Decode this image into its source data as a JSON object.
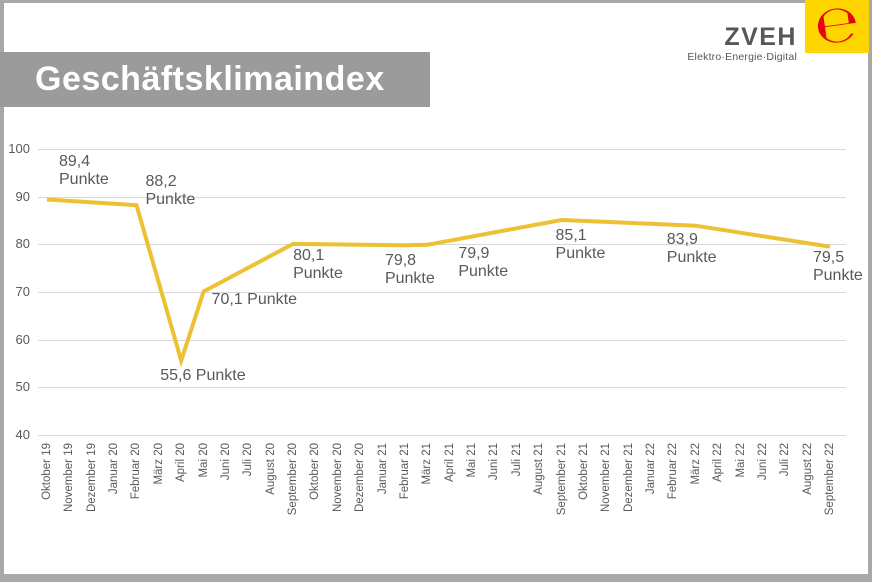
{
  "header": {
    "title": "Geschäftsklimaindex"
  },
  "logo": {
    "brand": "ZVEH",
    "tagline": "Elektro·Energie·Digital",
    "mark_glyph": "℮",
    "square_color": "#ffd500",
    "mark_color": "#e30613",
    "text_color": "#575756"
  },
  "frame": {
    "border_color": "#a8a8a8",
    "banner_color": "#9b9b9b"
  },
  "chart_data": {
    "type": "line",
    "title": "Geschäftsklimaindex",
    "unit": "Punkte",
    "line_color": "#edc133",
    "grid_color": "#d9d9d9",
    "text_color": "#595959",
    "grid": true,
    "legend": false,
    "ylim": [
      40,
      100
    ],
    "yticks": [
      100,
      90,
      80,
      70,
      60,
      50,
      40
    ],
    "categories": [
      "Oktober 19",
      "November 19",
      "Dezember 19",
      "Januar 20",
      "Februar 20",
      "März 20",
      "April 20",
      "Mai 20",
      "Juni 20",
      "Juli 20",
      "August 20",
      "September 20",
      "Oktober 20",
      "November 20",
      "Dezember 20",
      "Januar 21",
      "Februar 21",
      "März 21",
      "April 21",
      "Mai 21",
      "Juni 21",
      "Juli 21",
      "August 21",
      "September 21",
      "Oktober 21",
      "November 21",
      "Dezember 21",
      "Januar 22",
      "Februar 22",
      "März 22",
      "April 22",
      "Mai 22",
      "Juni 22",
      "Juli 22",
      "August 22",
      "September 22"
    ],
    "series": [
      {
        "name": "Geschäftsklimaindex",
        "points": [
          {
            "category": "Oktober 19",
            "value": 89.4,
            "label_lines": [
              "89,4",
              "Punkte"
            ],
            "label_offset": [
              12,
              -47
            ]
          },
          {
            "category": "Februar 20",
            "value": 88.2,
            "label_lines": [
              "88,2",
              "Punkte"
            ],
            "label_offset": [
              9,
              -32
            ]
          },
          {
            "category": "April 20",
            "value": 55.6,
            "label_lines": [
              "55,6 Punkte"
            ],
            "label_offset": [
              -21,
              6
            ]
          },
          {
            "category": "Mai 20",
            "value": 70.1,
            "label_lines": [
              "70,1 Punkte"
            ],
            "label_offset": [
              8,
              -1
            ]
          },
          {
            "category": "September 20",
            "value": 80.1,
            "label_lines": [
              "80,1",
              "Punkte"
            ],
            "label_offset": [
              0,
              3
            ]
          },
          {
            "category": "Februar 21",
            "value": 79.8,
            "label_lines": [
              "79,8",
              "Punkte"
            ],
            "label_offset": [
              -20,
              7
            ]
          },
          {
            "category": "März 21",
            "value": 79.9,
            "label_lines": [
              "79,9",
              "Punkte"
            ],
            "label_offset": [
              31,
              0
            ]
          },
          {
            "category": "September 21",
            "value": 85.1,
            "label_lines": [
              "85,1",
              "Punkte"
            ],
            "label_offset": [
              -6,
              7
            ]
          },
          {
            "category": "März 22",
            "value": 83.9,
            "label_lines": [
              "83,9",
              "Punkte"
            ],
            "label_offset": [
              -29,
              5
            ]
          },
          {
            "category": "September 22",
            "value": 79.5,
            "label_lines": [
              "79,5",
              "Punkte"
            ],
            "label_offset": [
              -17,
              2
            ]
          }
        ]
      }
    ]
  }
}
